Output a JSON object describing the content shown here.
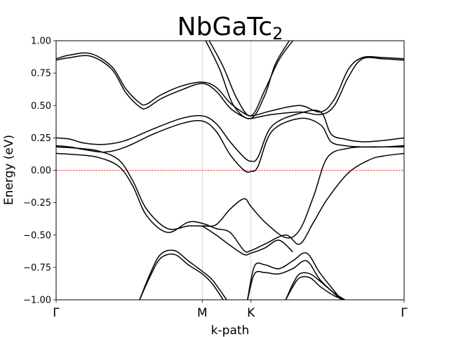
{
  "chart_data": {
    "type": "line",
    "title": "NbGaTc",
    "title_subscript": "2",
    "xlabel": "k-path",
    "ylabel": "Energy (eV)",
    "ylim": [
      -1.0,
      1.0
    ],
    "y_ticks": [
      "1.00",
      "0.75",
      "0.50",
      "0.25",
      "0.00",
      "−0.25",
      "−0.50",
      "−0.75",
      "−1.00"
    ],
    "y_tick_values": [
      1.0,
      0.75,
      0.5,
      0.25,
      0.0,
      -0.25,
      -0.5,
      -0.75,
      -1.0
    ],
    "kpoints": [
      {
        "label": "Γ",
        "x": 0.0
      },
      {
        "label": "M",
        "x": 0.42
      },
      {
        "label": "K",
        "x": 0.56
      },
      {
        "label": "Γ",
        "x": 1.0
      }
    ],
    "xlim": [
      0.0,
      1.0
    ],
    "grid": "vertical lines at high-symmetry points",
    "fermi_level": {
      "value": 0.0,
      "color": "#ff0000",
      "style": "dashed"
    },
    "band_color": "#000000",
    "series": [
      {
        "x": [
          0,
          0.04,
          0.1,
          0.16,
          0.2,
          0.24,
          0.26,
          0.3,
          0.36,
          0.42,
          0.46,
          0.5,
          0.54,
          0.56,
          0.58,
          0.62,
          0.7,
          0.76,
          0.8,
          0.84,
          0.88,
          0.94,
          1.0
        ],
        "values": [
          0.86,
          0.89,
          0.9,
          0.8,
          0.63,
          0.52,
          0.51,
          0.58,
          0.65,
          0.68,
          0.64,
          0.52,
          0.44,
          0.42,
          0.43,
          0.46,
          0.5,
          0.45,
          0.55,
          0.78,
          0.87,
          0.87,
          0.86
        ]
      },
      {
        "x": [
          0,
          0.04,
          0.1,
          0.16,
          0.2,
          0.24,
          0.26,
          0.3,
          0.36,
          0.42,
          0.46,
          0.5,
          0.54,
          0.56,
          0.58,
          0.62,
          0.7,
          0.76,
          0.8,
          0.84,
          0.88,
          0.94,
          1.0
        ],
        "values": [
          0.85,
          0.87,
          0.88,
          0.78,
          0.6,
          0.49,
          0.48,
          0.55,
          0.62,
          0.67,
          0.61,
          0.48,
          0.41,
          0.4,
          0.41,
          0.43,
          0.45,
          0.43,
          0.5,
          0.72,
          0.86,
          0.86,
          0.85
        ]
      },
      {
        "x": [
          0.44,
          0.48,
          0.52,
          0.56,
          0.6,
          0.64,
          0.68
        ],
        "values": [
          1.0,
          0.8,
          0.55,
          0.42,
          0.62,
          0.85,
          1.0
        ]
      },
      {
        "x": [
          0.43,
          0.47,
          0.51,
          0.56,
          0.6,
          0.63,
          0.67
        ],
        "values": [
          1.0,
          0.78,
          0.5,
          0.4,
          0.58,
          0.82,
          1.0
        ]
      },
      {
        "x": [
          0,
          0.04,
          0.08,
          0.14,
          0.2,
          0.28,
          0.36,
          0.42,
          0.46,
          0.5,
          0.54,
          0.56,
          0.58,
          0.62,
          0.7,
          0.76,
          0.79,
          0.83,
          0.88,
          0.94,
          1.0
        ],
        "values": [
          0.25,
          0.24,
          0.21,
          0.2,
          0.23,
          0.32,
          0.4,
          0.42,
          0.36,
          0.22,
          0.1,
          0.07,
          0.1,
          0.34,
          0.44,
          0.45,
          0.28,
          0.24,
          0.22,
          0.23,
          0.25
        ]
      },
      {
        "x": [
          0,
          0.04,
          0.08,
          0.14,
          0.2,
          0.28,
          0.36,
          0.42,
          0.46,
          0.5,
          0.54,
          0.56,
          0.58,
          0.62,
          0.7,
          0.76,
          0.79,
          0.83,
          0.88,
          0.94,
          1.0
        ],
        "values": [
          0.19,
          0.18,
          0.16,
          0.14,
          0.18,
          0.28,
          0.36,
          0.38,
          0.3,
          0.12,
          0.0,
          -0.01,
          0.03,
          0.3,
          0.4,
          0.35,
          0.22,
          0.19,
          0.18,
          0.18,
          0.19
        ]
      },
      {
        "x": [
          0,
          0.06,
          0.12,
          0.18,
          0.22,
          0.26,
          0.32,
          0.38,
          0.42,
          0.46,
          0.5,
          0.54,
          0.56,
          0.6,
          0.66,
          0.7,
          0.74,
          0.78,
          0.84,
          0.9,
          0.94,
          1.0
        ],
        "values": [
          0.18,
          0.17,
          0.15,
          0.08,
          -0.08,
          -0.3,
          -0.45,
          -0.43,
          -0.43,
          -0.42,
          -0.3,
          -0.22,
          -0.28,
          -0.4,
          -0.52,
          -0.46,
          -0.2,
          0.1,
          0.17,
          0.18,
          0.18,
          0.18
        ]
      },
      {
        "x": [
          0,
          0.06,
          0.12,
          0.18,
          0.22,
          0.26,
          0.32,
          0.38,
          0.42,
          0.46,
          0.5,
          0.54,
          0.56,
          0.6,
          0.66,
          0.7,
          0.74,
          0.78,
          0.84,
          0.9,
          0.94,
          1.0
        ],
        "values": [
          0.13,
          0.12,
          0.1,
          0.03,
          -0.12,
          -0.35,
          -0.48,
          -0.4,
          -0.41,
          -0.45,
          -0.48,
          -0.62,
          -0.62,
          -0.57,
          -0.5,
          -0.57,
          -0.4,
          -0.22,
          -0.02,
          0.08,
          0.11,
          0.13
        ]
      },
      {
        "x": [
          0.42,
          0.46,
          0.5,
          0.54,
          0.56,
          0.6,
          0.64,
          0.68
        ],
        "values": [
          -0.43,
          -0.5,
          -0.58,
          -0.65,
          -0.64,
          -0.6,
          -0.54,
          -0.63
        ]
      },
      {
        "x": [
          0.24,
          0.27,
          0.3,
          0.34,
          0.38,
          0.42,
          0.45,
          0.49
        ],
        "values": [
          -1.0,
          -0.8,
          -0.65,
          -0.62,
          -0.7,
          -0.78,
          -0.85,
          -1.0
        ]
      },
      {
        "x": [
          0.24,
          0.27,
          0.3,
          0.34,
          0.38,
          0.42,
          0.45,
          0.48
        ],
        "values": [
          -1.0,
          -0.82,
          -0.68,
          -0.65,
          -0.73,
          -0.8,
          -0.88,
          -1.0
        ]
      },
      {
        "x": [
          0.55,
          0.57,
          0.6,
          0.64,
          0.68,
          0.72,
          0.76,
          0.82
        ],
        "values": [
          -1.0,
          -0.74,
          -0.73,
          -0.76,
          -0.7,
          -0.64,
          -0.8,
          -1.0
        ]
      },
      {
        "x": [
          0.55,
          0.57,
          0.6,
          0.64,
          0.68,
          0.72,
          0.76,
          0.82
        ],
        "values": [
          -1.0,
          -0.8,
          -0.79,
          -0.8,
          -0.76,
          -0.7,
          -0.85,
          -1.0
        ]
      },
      {
        "x": [
          0.66,
          0.68,
          0.7,
          0.73,
          0.76,
          0.8,
          0.83
        ],
        "values": [
          -1.0,
          -0.88,
          -0.8,
          -0.8,
          -0.86,
          -0.95,
          -1.0
        ]
      },
      {
        "x": [
          0.66,
          0.68,
          0.7,
          0.73,
          0.76,
          0.8,
          0.83
        ],
        "values": [
          -1.0,
          -0.9,
          -0.83,
          -0.83,
          -0.9,
          -0.97,
          -1.0
        ]
      }
    ]
  }
}
